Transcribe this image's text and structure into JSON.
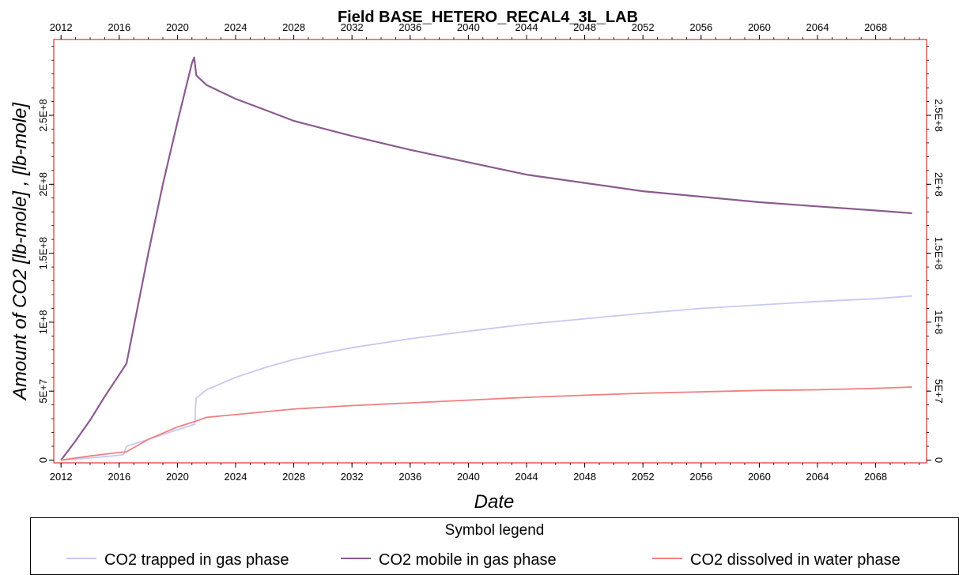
{
  "chart_data": {
    "type": "line",
    "title": "Field BASE_HETERO_RECAL4_3L_LAB",
    "xlabel": "Date",
    "ylabel": "Amount of CO2 [lb-mole] , [lb-mole]",
    "xlim": [
      2011.5,
      2071.5
    ],
    "ylim": [
      -2000000,
      305000000
    ],
    "x_ticks": [
      "2012",
      "2016",
      "2020",
      "2024",
      "2028",
      "2032",
      "2036",
      "2040",
      "2044",
      "2048",
      "2052",
      "2056",
      "2060",
      "2064",
      "2068"
    ],
    "y_ticks_left": [
      {
        "value": 0,
        "label": "0"
      },
      {
        "value": 50000000,
        "label": "5E+7"
      },
      {
        "value": 100000000,
        "label": "1E+8"
      },
      {
        "value": 150000000,
        "label": "1.5E+8"
      },
      {
        "value": 200000000,
        "label": "2E+8"
      },
      {
        "value": 250000000,
        "label": "2.5E+8"
      }
    ],
    "y_ticks_right": [
      {
        "value": 0,
        "label": "0"
      },
      {
        "value": 50000000,
        "label": "5E+7"
      },
      {
        "value": 100000000,
        "label": "1E+8"
      },
      {
        "value": 150000000,
        "label": "1.5E+8"
      },
      {
        "value": 200000000,
        "label": "2E+8"
      },
      {
        "value": 250000000,
        "label": "2.5E+8"
      }
    ],
    "legend_title": "Symbol legend",
    "legend_position": "bottom",
    "grid": false,
    "series": [
      {
        "name": "CO2 trapped in gas phase",
        "color": "#c8c8f4",
        "points": [
          [
            2012,
            0
          ],
          [
            2014,
            1500000
          ],
          [
            2016,
            3500000
          ],
          [
            2016.3,
            4000000
          ],
          [
            2016.5,
            10000000
          ],
          [
            2018,
            15000000
          ],
          [
            2020,
            22000000
          ],
          [
            2021.2,
            26000000
          ],
          [
            2021.25,
            40000000
          ],
          [
            2021.3,
            45000000
          ],
          [
            2022,
            51000000
          ],
          [
            2024,
            60000000
          ],
          [
            2026,
            67000000
          ],
          [
            2028,
            73000000
          ],
          [
            2030,
            77500000
          ],
          [
            2032,
            81500000
          ],
          [
            2036,
            88000000
          ],
          [
            2040,
            93500000
          ],
          [
            2044,
            98500000
          ],
          [
            2048,
            102500000
          ],
          [
            2052,
            106500000
          ],
          [
            2056,
            110000000
          ],
          [
            2060,
            112500000
          ],
          [
            2064,
            115000000
          ],
          [
            2068,
            117000000
          ],
          [
            2070.5,
            119000000
          ]
        ]
      },
      {
        "name": "CO2 mobile in gas phase",
        "color": "#8b5a8f",
        "points": [
          [
            2012,
            0
          ],
          [
            2013,
            14000000
          ],
          [
            2014,
            29000000
          ],
          [
            2015,
            46000000
          ],
          [
            2016,
            62000000
          ],
          [
            2016.5,
            70000000
          ],
          [
            2018,
            150000000
          ],
          [
            2019,
            200000000
          ],
          [
            2020,
            245000000
          ],
          [
            2021,
            288000000
          ],
          [
            2021.15,
            292000000
          ],
          [
            2021.3,
            279000000
          ],
          [
            2022,
            272000000
          ],
          [
            2024,
            262000000
          ],
          [
            2026,
            254000000
          ],
          [
            2028,
            246000000
          ],
          [
            2032,
            235000000
          ],
          [
            2036,
            225000000
          ],
          [
            2040,
            216000000
          ],
          [
            2044,
            207000000
          ],
          [
            2048,
            201000000
          ],
          [
            2052,
            195000000
          ],
          [
            2056,
            191000000
          ],
          [
            2060,
            187000000
          ],
          [
            2064,
            184000000
          ],
          [
            2068,
            181000000
          ],
          [
            2070.5,
            179000000
          ]
        ]
      },
      {
        "name": "CO2 dissolved in water phase",
        "color": "#f08080",
        "points": [
          [
            2012,
            0
          ],
          [
            2014,
            3000000
          ],
          [
            2016,
            5500000
          ],
          [
            2016.5,
            6000000
          ],
          [
            2018,
            15000000
          ],
          [
            2020,
            24000000
          ],
          [
            2021.2,
            28000000
          ],
          [
            2022,
            31000000
          ],
          [
            2024,
            33000000
          ],
          [
            2026,
            35000000
          ],
          [
            2028,
            37000000
          ],
          [
            2032,
            39500000
          ],
          [
            2036,
            41500000
          ],
          [
            2040,
            43500000
          ],
          [
            2044,
            45500000
          ],
          [
            2048,
            47000000
          ],
          [
            2052,
            48500000
          ],
          [
            2056,
            49500000
          ],
          [
            2060,
            50500000
          ],
          [
            2064,
            51000000
          ],
          [
            2068,
            52000000
          ],
          [
            2070.5,
            53000000
          ]
        ]
      }
    ]
  }
}
